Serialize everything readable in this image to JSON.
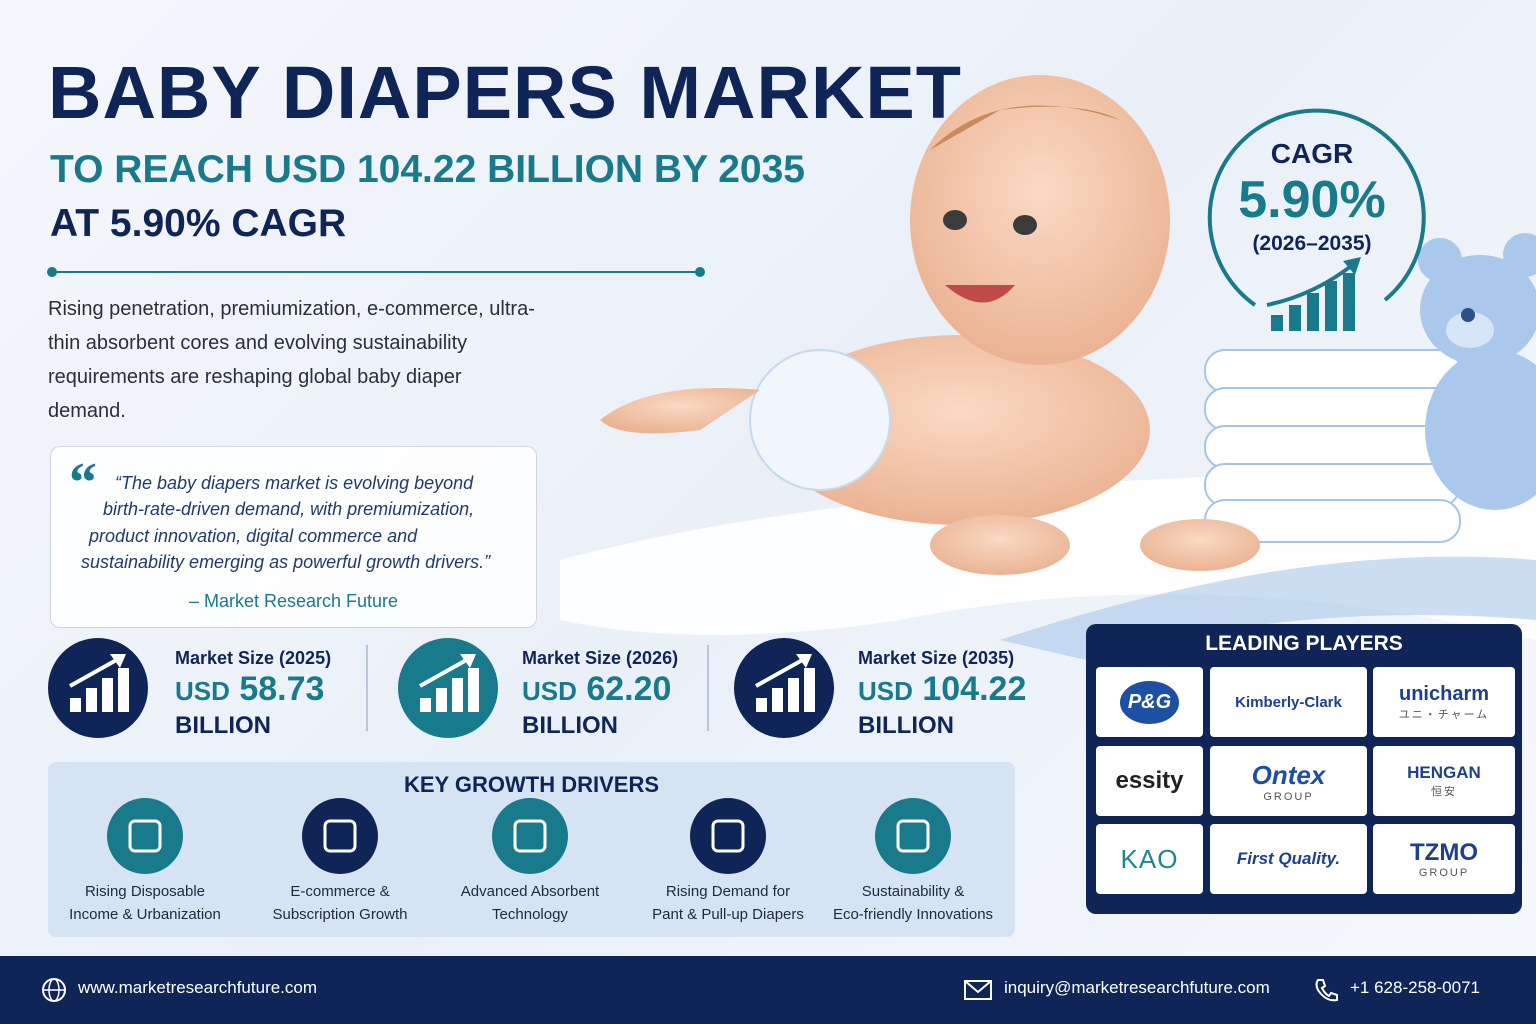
{
  "header": {
    "title": "BABY DIAPERS MARKET",
    "subtitle_line1": "TO REACH USD 104.22 BILLION BY 2035",
    "subtitle_line2": "AT 5.90% CAGR"
  },
  "intro": "Rising penetration, premiumization, e-commerce, ultra-thin absorbent cores and evolving sustainability requirements are reshaping global baby diaper demand.",
  "quote": {
    "mark": "“",
    "lines": [
      "“The baby diapers market is evolving beyond",
      "birth-rate-driven demand, with premiumization,",
      "product innovation, digital commerce and",
      "sustainability emerging as powerful growth drivers.”"
    ],
    "source": "– Market Research Future"
  },
  "cagr": {
    "label": "CAGR",
    "value": "5.90%",
    "period": "(2026–2035)"
  },
  "market_sizes": [
    {
      "label": "Market Size (2025)",
      "currency": "USD",
      "value": "58.73",
      "unit": "BILLION"
    },
    {
      "label": "Market Size (2026)",
      "currency": "USD",
      "value": "62.20",
      "unit": "BILLION"
    },
    {
      "label": "Market Size (2035)",
      "currency": "USD",
      "value": "104.22",
      "unit": "BILLION"
    }
  ],
  "drivers": {
    "title": "KEY GROWTH DRIVERS",
    "items": [
      {
        "lines": [
          "Rising Disposable",
          "Income & Urbanization"
        ]
      },
      {
        "lines": [
          "E-commerce &",
          "Subscription Growth"
        ]
      },
      {
        "lines": [
          "Advanced Absorbent",
          "Technology"
        ]
      },
      {
        "lines": [
          "Rising Demand for",
          "Pant & Pull-up Diapers"
        ]
      },
      {
        "lines": [
          "Sustainability &",
          "Eco-friendly Innovations"
        ]
      }
    ]
  },
  "players": {
    "title": "LEADING PLAYERS",
    "items": [
      {
        "name": "P&G"
      },
      {
        "name": "Kimberly-Clark"
      },
      {
        "name": "unicharm",
        "sub": "ユニ・チャーム"
      },
      {
        "name": "essity"
      },
      {
        "name": "Ontex",
        "sub": "GROUP"
      },
      {
        "name": "HENGAN",
        "sub": "恒安"
      },
      {
        "name": "KAO"
      },
      {
        "name": "First Quality."
      },
      {
        "name": "TZMO",
        "sub": "GROUP"
      }
    ]
  },
  "footer": {
    "website": "www.marketresearchfuture.com",
    "email": "inquiry@marketresearchfuture.com",
    "phone": "+1 628-258-0071"
  }
}
